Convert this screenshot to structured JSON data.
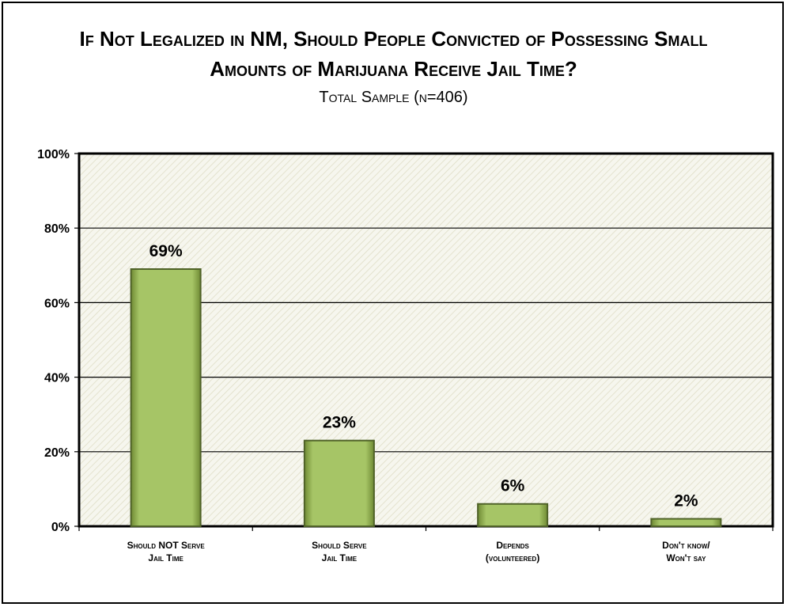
{
  "chart_data": {
    "type": "bar",
    "title_line1": "If Not Legalized in NM, Should People Convicted of Possessing Small",
    "title_line2": "Amounts of Marijuana Receive Jail Time?",
    "subtitle": "Total Sample (n=406)",
    "categories": [
      [
        "Should NOT Serve",
        "Jail Time"
      ],
      [
        "Should Serve",
        "Jail Time"
      ],
      [
        "Depends",
        "(volunteered)"
      ],
      [
        "Don't know/",
        "Won't say"
      ]
    ],
    "values": [
      69,
      23,
      6,
      2
    ],
    "value_labels": [
      "69%",
      "23%",
      "6%",
      "2%"
    ],
    "ylim": [
      0,
      100
    ],
    "yticks": [
      0,
      20,
      40,
      60,
      80,
      100
    ],
    "ytick_labels": [
      "0%",
      "20%",
      "40%",
      "60%",
      "80%",
      "100%"
    ],
    "grid": true,
    "bar_color": "#9bbb59",
    "bar_edge_color": "#4f6228",
    "plot_background": "#f4f4ea"
  }
}
